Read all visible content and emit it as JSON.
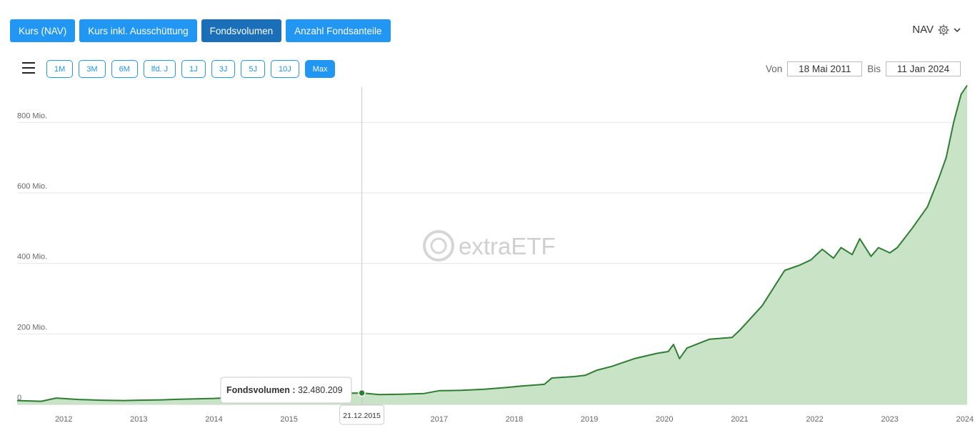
{
  "metric_tabs": [
    {
      "label": "Kurs (NAV)",
      "active": false
    },
    {
      "label": "Kurs inkl. Ausschüttung",
      "active": false
    },
    {
      "label": "Fondsvolumen",
      "active": true
    },
    {
      "label": "Anzahl Fondsanteile",
      "active": false
    }
  ],
  "nav_select": {
    "label": "NAV",
    "icon": "gear-icon"
  },
  "range_buttons": [
    {
      "label": "1M",
      "active": false
    },
    {
      "label": "3M",
      "active": false
    },
    {
      "label": "6M",
      "active": false
    },
    {
      "label": "lfd. J",
      "active": false
    },
    {
      "label": "1J",
      "active": false
    },
    {
      "label": "3J",
      "active": false
    },
    {
      "label": "5J",
      "active": false
    },
    {
      "label": "10J",
      "active": false
    },
    {
      "label": "Max",
      "active": true
    }
  ],
  "date_range": {
    "from_label": "Von",
    "from": "18 Mai 2011",
    "to_label": "Bis",
    "to": "11 Jan 2024"
  },
  "watermark": "extraETF",
  "colors": {
    "accent": "#2196f3",
    "accent_dark": "#1a6fb8",
    "line": "#2e7d32",
    "area": "#c8e3c6"
  },
  "chart_data": {
    "type": "area",
    "series": [
      {
        "name": "Fondsvolumen",
        "x": [
          2011.38,
          2011.7,
          2011.9,
          2012.2,
          2012.5,
          2012.8,
          2013.0,
          2013.3,
          2013.6,
          2014.0,
          2014.3,
          2014.6,
          2015.0,
          2015.3,
          2015.6,
          2015.97,
          2016.2,
          2016.5,
          2016.8,
          2017.0,
          2017.3,
          2017.6,
          2017.9,
          2018.1,
          2018.4,
          2018.5,
          2018.8,
          2018.95,
          2019.1,
          2019.3,
          2019.6,
          2019.9,
          2020.05,
          2020.12,
          2020.2,
          2020.3,
          2020.6,
          2020.9,
          2021.0,
          2021.3,
          2021.6,
          2021.8,
          2021.95,
          2022.1,
          2022.25,
          2022.35,
          2022.5,
          2022.6,
          2022.75,
          2022.85,
          2023.0,
          2023.1,
          2023.3,
          2023.5,
          2023.65,
          2023.75,
          2023.85,
          2023.95,
          2024.03
        ],
        "y": [
          11,
          9,
          18,
          14,
          12,
          11,
          12,
          13,
          15,
          17,
          20,
          22,
          27,
          30,
          31,
          32.5,
          28,
          29,
          31,
          39,
          40,
          43,
          48,
          52,
          57,
          75,
          79,
          83,
          97,
          108,
          130,
          145,
          150,
          170,
          130,
          160,
          185,
          190,
          210,
          280,
          380,
          395,
          410,
          440,
          415,
          445,
          425,
          470,
          420,
          445,
          430,
          445,
          500,
          560,
          640,
          700,
          800,
          880,
          905
        ]
      }
    ],
    "xlim": [
      2011.38,
      2024.03
    ],
    "ylim": [
      0,
      900
    ],
    "x_ticks": [
      {
        "value": 2012,
        "label": "2012"
      },
      {
        "value": 2013,
        "label": "2013"
      },
      {
        "value": 2014,
        "label": "2014"
      },
      {
        "value": 2015,
        "label": "2015"
      },
      {
        "value": 2016,
        "label": ""
      },
      {
        "value": 2017,
        "label": "2017"
      },
      {
        "value": 2018,
        "label": "2018"
      },
      {
        "value": 2019,
        "label": "2019"
      },
      {
        "value": 2020,
        "label": "2020"
      },
      {
        "value": 2021,
        "label": "2021"
      },
      {
        "value": 2022,
        "label": "2022"
      },
      {
        "value": 2023,
        "label": "2023"
      },
      {
        "value": 2024,
        "label": "2024"
      }
    ],
    "y_ticks": [
      {
        "value": 0,
        "label": "0"
      },
      {
        "value": 200,
        "label": "200 Mio."
      },
      {
        "value": 400,
        "label": "400 Mio."
      },
      {
        "value": 600,
        "label": "600 Mio."
      },
      {
        "value": 800,
        "label": "800 Mio."
      }
    ],
    "grid": true,
    "tooltip": {
      "x": 2015.97,
      "y": 32.480209,
      "series_label": "Fondsvolumen :",
      "value_label": "32.480.209",
      "date_label": "21.12.2015"
    }
  }
}
